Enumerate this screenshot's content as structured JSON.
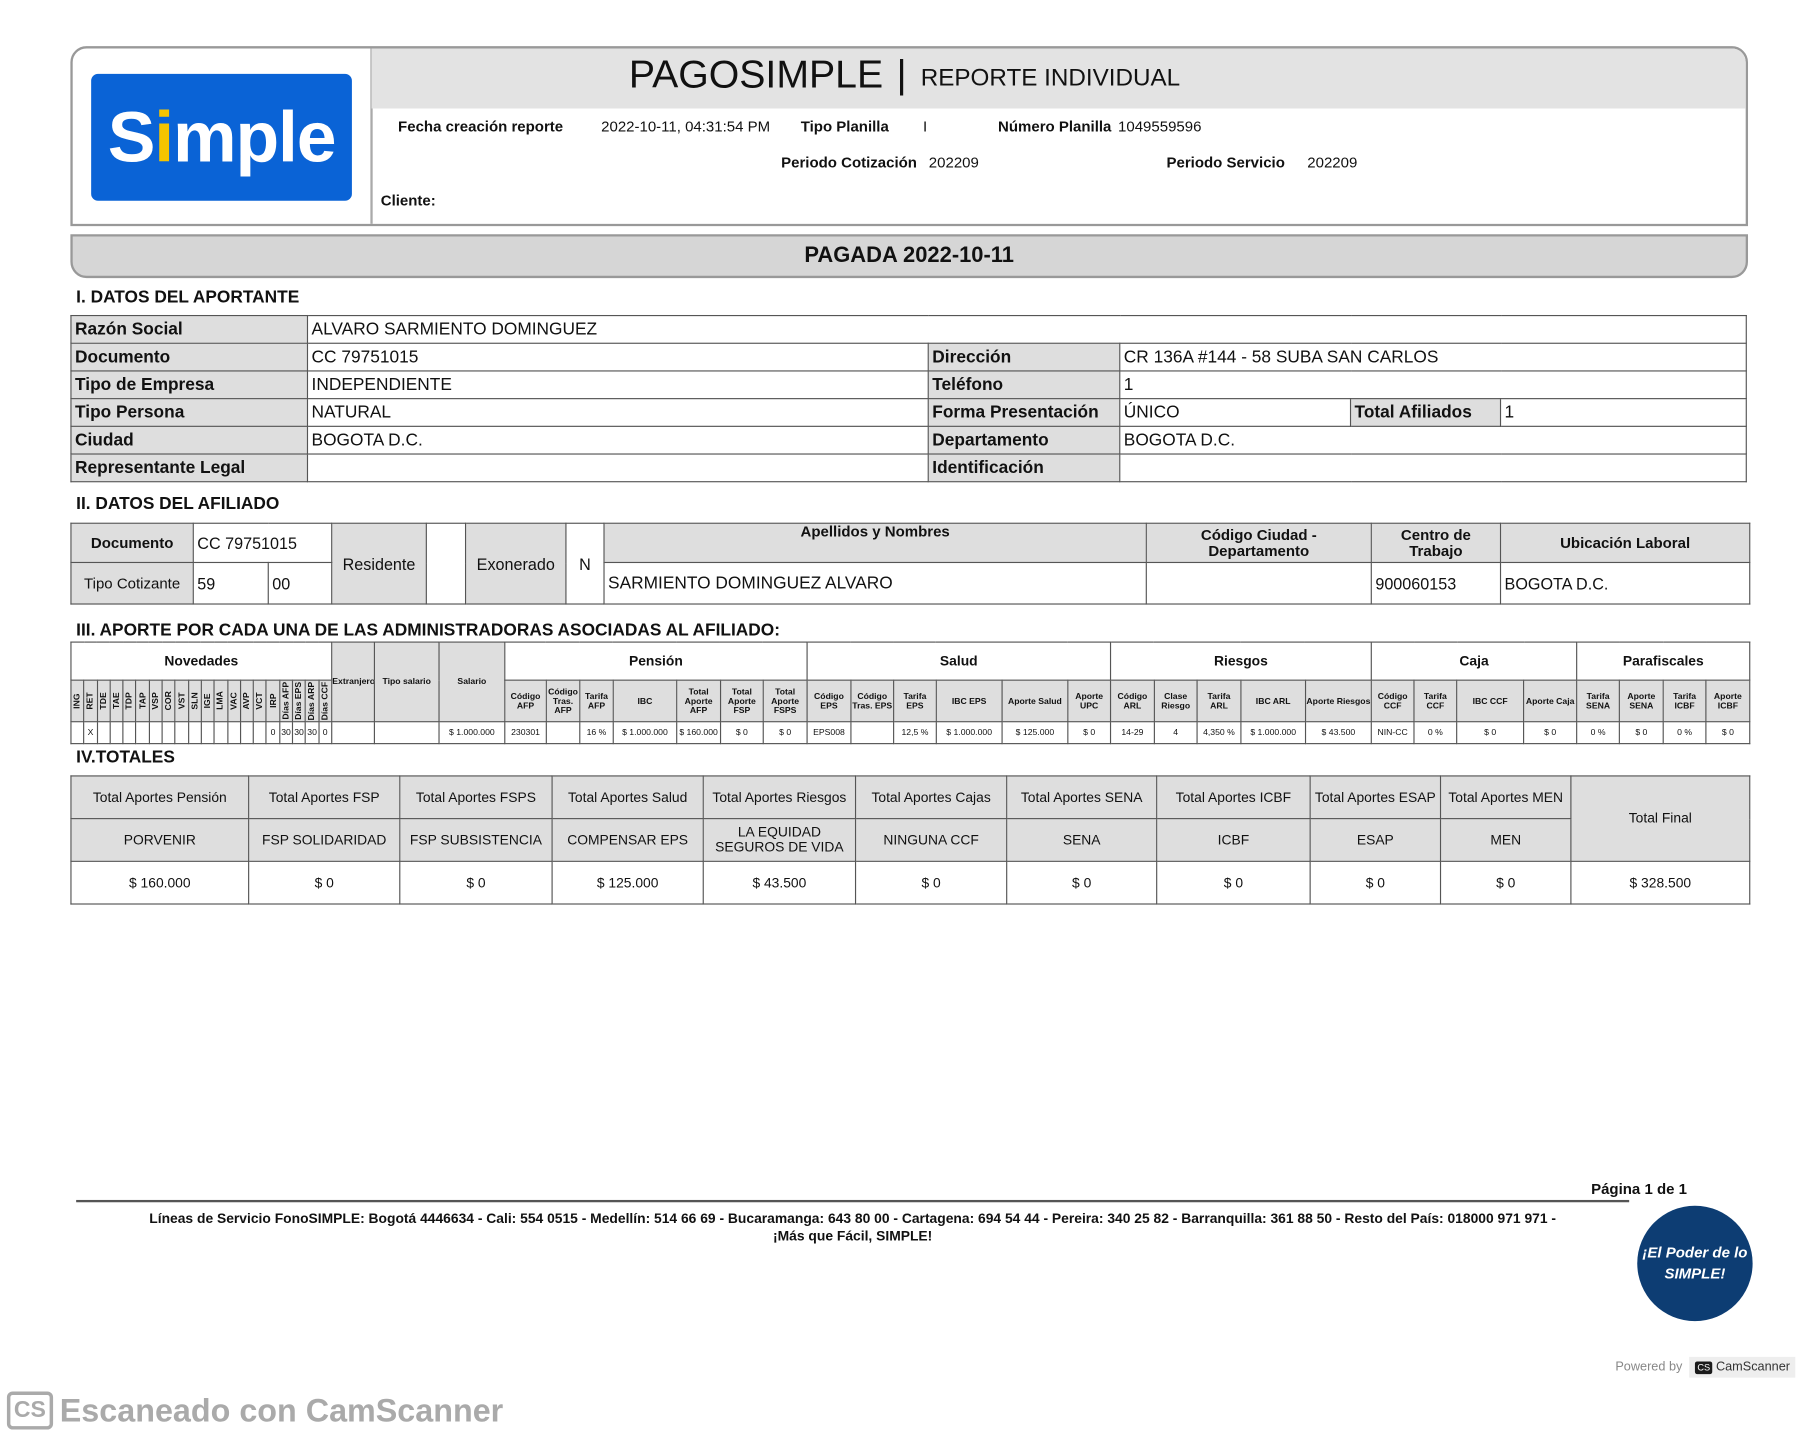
{
  "header": {
    "logo_text": "Simple",
    "title": "PAGOSIMPLE",
    "separator": "|",
    "subtitle": "REPORTE INDIVIDUAL",
    "fecha_label": "Fecha creación reporte",
    "fecha_value": "2022-10-11, 04:31:54 PM",
    "tipo_planilla_label": "Tipo Planilla",
    "tipo_planilla_value": "I",
    "numero_planilla_label": "Número Planilla",
    "numero_planilla_value": "1049559596",
    "periodo_cot_label": "Periodo Cotización",
    "periodo_cot_value": "202209",
    "periodo_serv_label": "Periodo Servicio",
    "periodo_serv_value": "202209",
    "cliente_label": "Cliente:"
  },
  "status": "PAGADA 2022-10-11",
  "aportante": {
    "title": "I. DATOS DEL APORTANTE",
    "razon_label": "Razón Social",
    "razon": "ALVARO  SARMIENTO DOMINGUEZ",
    "documento_label": "Documento",
    "documento": "CC 79751015",
    "direccion_label": "Dirección",
    "direccion": "CR 136A #144 - 58  SUBA SAN CARLOS",
    "tipo_empresa_label": "Tipo de Empresa",
    "tipo_empresa": "INDEPENDIENTE",
    "telefono_label": "Teléfono",
    "telefono": "1",
    "tipo_persona_label": "Tipo Persona",
    "tipo_persona": "NATURAL",
    "forma_label": "Forma Presentación",
    "forma": "ÚNICO",
    "total_afiliados_label": "Total Afiliados",
    "total_afiliados": "1",
    "ciudad_label": "Ciudad",
    "ciudad": "BOGOTA D.C.",
    "departamento_label": "Departamento",
    "departamento": "BOGOTA D.C.",
    "representante_label": "Representante Legal",
    "representante": "",
    "identificacion_label": "Identificación",
    "identificacion": ""
  },
  "afiliado": {
    "title": "II. DATOS DEL AFILIADO",
    "documento_label": "Documento",
    "documento": "CC 79751015",
    "tipo_cot_label": "Tipo Cotizante",
    "tipo_cot": "59",
    "subtipo": "00",
    "residente_label": "Residente",
    "residente": "",
    "exonerado_label": "Exonerado",
    "exonerado": "N",
    "nombres_label": "Apellidos y Nombres",
    "nombres": "SARMIENTO DOMINGUEZ ALVARO",
    "codigo_ciudad_label": "Código Ciudad - Departamento",
    "codigo_ciudad": "",
    "centro_label": "Centro de Trabajo",
    "centro": "900060153",
    "ubicacion_label": "Ubicación Laboral",
    "ubicacion": "BOGOTA D.C."
  },
  "aportes": {
    "title": "III. APORTE POR CADA UNA DE LAS ADMINISTRADORAS ASOCIADAS AL AFILIADO:",
    "groups": [
      "Novedades",
      "Pensión",
      "Salud",
      "Riesgos",
      "Caja",
      "Parafiscales"
    ],
    "novedades_cols": [
      "ING",
      "RET",
      "TDE",
      "TAE",
      "TDP",
      "TAP",
      "VSP",
      "COR",
      "VST",
      "SLN",
      "IGE",
      "LMA",
      "VAC",
      "AVP",
      "VCT",
      "IRP",
      "Días AFP",
      "Días EPS",
      "Días ARP",
      "Días CCF"
    ],
    "novedades_vals": [
      "",
      "X",
      "",
      "",
      "",
      "",
      "",
      "",
      "",
      "",
      "",
      "",
      "",
      "",
      "",
      "0",
      "30",
      "30",
      "30",
      "0"
    ],
    "extra_cols": [
      "Extranjero",
      "Tipo salario",
      "Salario"
    ],
    "extra_vals": [
      "",
      "",
      "$ 1.000.000"
    ],
    "cols": [
      "Código AFP",
      "Código Tras. AFP",
      "Tarifa AFP",
      "IBC",
      "Total Aporte AFP",
      "Total Aporte FSP",
      "Total Aporte FSPS",
      "Código EPS",
      "Código Tras. EPS",
      "Tarifa EPS",
      "IBC EPS",
      "Aporte Salud",
      "Aporte UPC",
      "Código ARL",
      "Clase Riesgo",
      "Tarifa ARL",
      "IBC ARL",
      "Aporte Riesgos",
      "Código CCF",
      "Tarifa CCF",
      "IBC CCF",
      "Aporte Caja",
      "Tarifa SENA",
      "Aporte SENA",
      "Tarifa ICBF",
      "Aporte ICBF"
    ],
    "vals": [
      "230301",
      "",
      "16 %",
      "$ 1.000.000",
      "$ 160.000",
      "$ 0",
      "$ 0",
      "EPS008",
      "",
      "12,5 %",
      "$ 1.000.000",
      "$ 125.000",
      "$ 0",
      "14-29",
      "4",
      "4,350 %",
      "$ 1.000.000",
      "$ 43.500",
      "NIN-CC",
      "0 %",
      "$ 0",
      "$ 0",
      "0 %",
      "$ 0",
      "0 %",
      "$ 0"
    ]
  },
  "totales": {
    "title": "IV.TOTALES",
    "headers": [
      "Total Aportes Pensión",
      "Total Aportes FSP",
      "Total Aportes FSPS",
      "Total Aportes Salud",
      "Total Aportes Riesgos",
      "Total Aportes Cajas",
      "Total Aportes SENA",
      "Total Aportes ICBF",
      "Total Aportes ESAP",
      "Total Aportes MEN"
    ],
    "entities": [
      "PORVENIR",
      "FSP SOLIDARIDAD",
      "FSP SUBSISTENCIA",
      "COMPENSAR EPS",
      "LA EQUIDAD SEGUROS DE VIDA",
      "NINGUNA CCF",
      "SENA",
      "ICBF",
      "ESAP",
      "MEN"
    ],
    "values": [
      "$ 160.000",
      "$ 0",
      "$ 0",
      "$ 125.000",
      "$ 43.500",
      "$ 0",
      "$ 0",
      "$ 0",
      "$ 0",
      "$ 0"
    ],
    "final_label": "Total Final",
    "final_value": "$ 328.500"
  },
  "footer": {
    "page": "Página 1 de  1",
    "lines": "Líneas de Servicio FonoSIMPLE: Bogotá 4446634 - Cali: 554 0515 - Medellín: 514 66 69 - Bucaramanga: 643 80 00 - Cartagena: 694 54 44 - Pereira: 340 25 82 - Barranquilla: 361 88 50 - Resto del País: 018000 971 971 -",
    "slogan": "¡Más que Fácil, SIMPLE!",
    "badge": "¡El Poder de lo SIMPLE!",
    "powered": "Powered by",
    "camscanner": "CamScanner",
    "watermark": "Escaneado con CamScanner"
  }
}
